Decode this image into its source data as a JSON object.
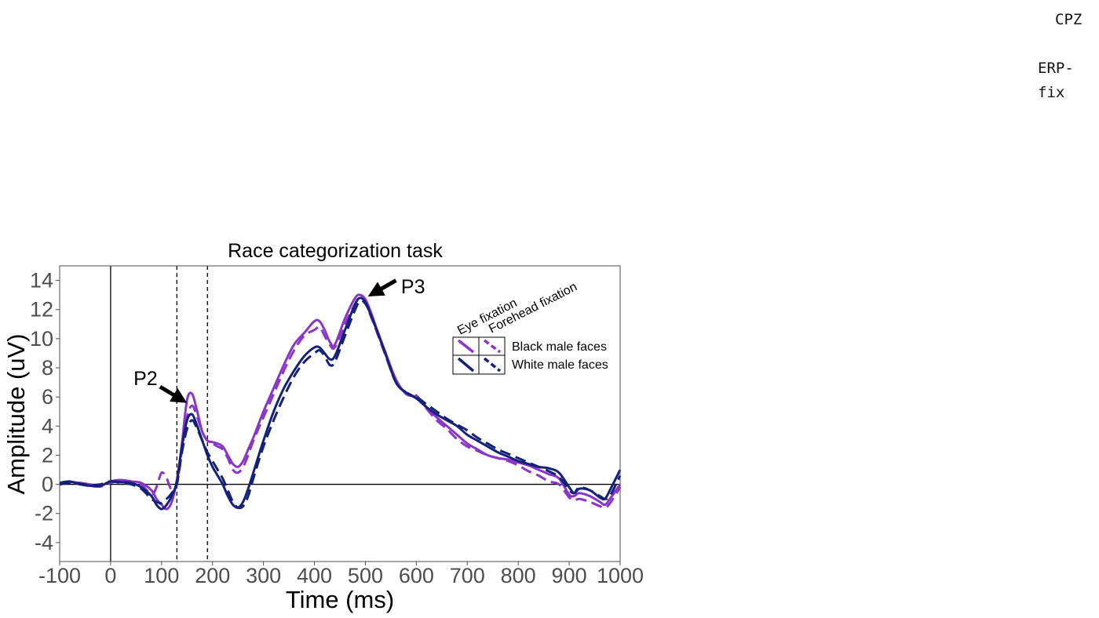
{
  "side_labels": {
    "channel": "CPZ",
    "type": "ERP-fix"
  },
  "chart_data": {
    "type": "line",
    "title": "Race categorization task",
    "xlabel": "Time (ms)",
    "ylabel": "Amplitude (uV)",
    "xlim": [
      -100,
      1000
    ],
    "ylim": [
      -5.3,
      15
    ],
    "xticks": [
      -100,
      0,
      100,
      200,
      300,
      400,
      500,
      600,
      700,
      800,
      900,
      1000
    ],
    "yticks": [
      -4,
      -2,
      0,
      2,
      4,
      6,
      8,
      10,
      12,
      14
    ],
    "grid": false,
    "hline": 0,
    "vlines": [
      {
        "x": 0,
        "style": "solid"
      },
      {
        "x": 130,
        "style": "dashed"
      },
      {
        "x": 190,
        "style": "dashed"
      }
    ],
    "annotations": [
      {
        "text": "P2",
        "x": 45,
        "y": 7.3,
        "arrow_from": [
          97,
          6.7
        ],
        "arrow_to": [
          140,
          5.8
        ]
      },
      {
        "text": "P3",
        "x": 570,
        "y": 13.6,
        "arrow_from": [
          560,
          14.0
        ],
        "arrow_to": [
          515,
          13.1
        ]
      }
    ],
    "legend": {
      "placement": "top-right",
      "columns": [
        "Eye fixation",
        "Forehead fixation"
      ],
      "rows": [
        "Black male faces",
        "White male faces"
      ]
    },
    "series": [
      {
        "name": "Black male faces – Eye fixation",
        "color": "#8a35c9",
        "dash": "solid",
        "x": [
          -100,
          -80,
          -60,
          -40,
          -20,
          0,
          20,
          40,
          60,
          80,
          90,
          100,
          110,
          120,
          130,
          140,
          150,
          160,
          170,
          180,
          190,
          200,
          210,
          220,
          230,
          240,
          250,
          260,
          270,
          280,
          300,
          320,
          340,
          360,
          380,
          400,
          410,
          420,
          430,
          440,
          460,
          480,
          490,
          500,
          510,
          520,
          540,
          560,
          580,
          600,
          620,
          640,
          660,
          680,
          700,
          720,
          740,
          760,
          780,
          800,
          820,
          840,
          860,
          880,
          900,
          910,
          920,
          940,
          960,
          970,
          980,
          1000
        ],
        "y": [
          0.0,
          0.15,
          0.1,
          0.0,
          -0.1,
          0.2,
          0.3,
          0.2,
          0.1,
          -0.4,
          -1.0,
          -1.4,
          -1.7,
          -1.2,
          0.3,
          2.8,
          5.8,
          6.2,
          5.0,
          3.6,
          3.0,
          2.9,
          2.8,
          2.6,
          2.0,
          1.4,
          1.2,
          1.6,
          2.4,
          3.2,
          5.0,
          6.6,
          8.2,
          9.6,
          10.4,
          11.2,
          11.2,
          10.6,
          9.8,
          9.6,
          11.4,
          12.8,
          13.0,
          12.7,
          11.9,
          10.9,
          9.0,
          7.2,
          6.2,
          6.0,
          5.3,
          4.6,
          4.0,
          3.4,
          2.8,
          2.4,
          2.0,
          1.8,
          1.7,
          1.5,
          1.3,
          1.0,
          0.7,
          0.4,
          -0.7,
          -0.8,
          -0.6,
          -0.8,
          -1.2,
          -1.4,
          -1.0,
          0.0
        ]
      },
      {
        "name": "Black male faces – Forehead fixation",
        "color": "#8a35c9",
        "dash": "dashed",
        "x": [
          -100,
          -80,
          -60,
          -40,
          -20,
          0,
          20,
          40,
          60,
          80,
          90,
          100,
          110,
          120,
          130,
          140,
          150,
          160,
          170,
          180,
          190,
          200,
          210,
          220,
          230,
          240,
          250,
          260,
          270,
          280,
          300,
          320,
          340,
          360,
          380,
          400,
          410,
          420,
          430,
          440,
          460,
          480,
          490,
          500,
          510,
          520,
          540,
          560,
          580,
          600,
          620,
          640,
          660,
          680,
          700,
          720,
          740,
          760,
          780,
          800,
          820,
          840,
          860,
          880,
          900,
          910,
          920,
          940,
          960,
          970,
          980,
          1000
        ],
        "y": [
          0.1,
          0.2,
          0.05,
          -0.1,
          -0.15,
          0.1,
          0.25,
          0.2,
          0.0,
          -0.7,
          -0.2,
          0.8,
          0.4,
          -0.4,
          0.0,
          2.4,
          4.6,
          5.4,
          4.6,
          3.6,
          3.0,
          2.8,
          2.6,
          2.4,
          1.8,
          1.0,
          0.8,
          1.2,
          2.0,
          3.0,
          4.6,
          6.2,
          7.8,
          9.2,
          10.2,
          10.6,
          10.8,
          10.2,
          9.6,
          9.4,
          11.0,
          12.4,
          12.8,
          12.5,
          11.6,
          10.7,
          8.8,
          7.0,
          6.3,
          6.1,
          5.2,
          4.4,
          3.8,
          3.1,
          2.6,
          2.3,
          2.0,
          1.8,
          1.6,
          1.3,
          0.9,
          0.6,
          0.2,
          0.0,
          -0.9,
          -1.1,
          -1.0,
          -1.2,
          -1.5,
          -1.6,
          -1.3,
          -0.2
        ]
      },
      {
        "name": "White male faces – Eye fixation",
        "color": "#14217a",
        "dash": "solid",
        "x": [
          -100,
          -80,
          -60,
          -40,
          -20,
          0,
          20,
          40,
          60,
          80,
          90,
          100,
          110,
          120,
          130,
          140,
          150,
          160,
          170,
          180,
          190,
          200,
          210,
          220,
          230,
          240,
          250,
          260,
          270,
          280,
          300,
          320,
          340,
          360,
          380,
          400,
          410,
          420,
          430,
          440,
          460,
          480,
          490,
          500,
          510,
          520,
          540,
          560,
          580,
          600,
          620,
          640,
          660,
          680,
          700,
          720,
          740,
          760,
          780,
          800,
          820,
          840,
          860,
          880,
          900,
          910,
          920,
          940,
          960,
          970,
          980,
          1000
        ],
        "y": [
          0.1,
          0.2,
          0.0,
          -0.1,
          -0.1,
          0.2,
          0.15,
          0.1,
          -0.2,
          -0.8,
          -1.4,
          -1.7,
          -1.4,
          -0.8,
          0.2,
          2.6,
          4.4,
          4.8,
          4.0,
          3.0,
          2.0,
          1.2,
          0.6,
          0.0,
          -0.8,
          -1.4,
          -1.6,
          -1.2,
          -0.3,
          0.8,
          3.0,
          5.0,
          6.6,
          7.8,
          8.8,
          9.4,
          9.4,
          9.0,
          8.6,
          8.8,
          10.6,
          12.4,
          12.8,
          12.5,
          11.7,
          10.8,
          8.9,
          7.0,
          6.3,
          5.9,
          5.3,
          4.8,
          4.4,
          4.0,
          3.4,
          3.0,
          2.6,
          2.2,
          1.9,
          1.6,
          1.4,
          1.2,
          1.1,
          0.8,
          -0.2,
          -0.6,
          -0.3,
          -0.4,
          -0.9,
          -1.0,
          -0.4,
          1.0
        ]
      },
      {
        "name": "White male faces – Forehead fixation",
        "color": "#14217a",
        "dash": "dashed",
        "x": [
          -100,
          -80,
          -60,
          -40,
          -20,
          0,
          20,
          40,
          60,
          80,
          90,
          100,
          110,
          120,
          130,
          140,
          150,
          160,
          170,
          180,
          190,
          200,
          210,
          220,
          230,
          240,
          250,
          260,
          270,
          280,
          300,
          320,
          340,
          360,
          380,
          400,
          410,
          420,
          430,
          440,
          460,
          480,
          490,
          500,
          510,
          520,
          540,
          560,
          580,
          600,
          620,
          640,
          660,
          680,
          700,
          720,
          740,
          760,
          780,
          800,
          820,
          840,
          860,
          880,
          900,
          910,
          920,
          940,
          960,
          970,
          980,
          1000
        ],
        "y": [
          0.0,
          0.1,
          0.05,
          -0.05,
          0.0,
          0.2,
          0.1,
          0.0,
          -0.3,
          -1.0,
          -1.2,
          -1.3,
          -1.0,
          -0.6,
          0.0,
          2.2,
          3.8,
          4.4,
          3.8,
          3.0,
          2.2,
          1.6,
          1.0,
          0.4,
          -0.4,
          -1.2,
          -1.6,
          -1.5,
          -0.8,
          0.4,
          2.6,
          4.4,
          6.0,
          7.4,
          8.4,
          9.0,
          9.2,
          8.8,
          8.2,
          8.4,
          10.2,
          12.0,
          12.6,
          12.4,
          11.7,
          10.8,
          8.9,
          7.0,
          6.3,
          6.0,
          5.5,
          5.0,
          4.5,
          4.1,
          3.7,
          3.2,
          2.8,
          2.4,
          2.1,
          1.8,
          1.5,
          1.2,
          0.9,
          0.5,
          -0.4,
          -0.6,
          -0.2,
          -0.4,
          -0.8,
          -1.0,
          -0.8,
          0.6
        ]
      }
    ]
  }
}
